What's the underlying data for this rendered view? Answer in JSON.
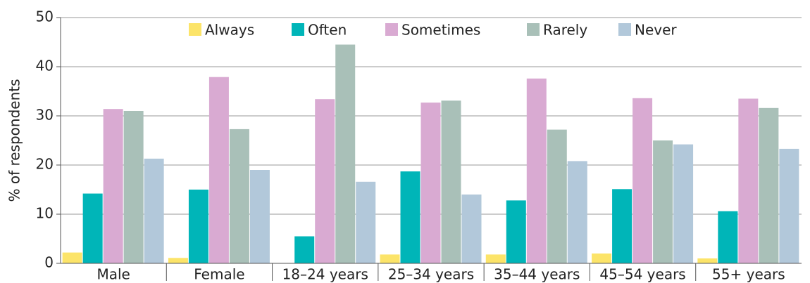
{
  "chart_data": {
    "type": "bar",
    "y_label": "% of respondents",
    "categories": [
      "Male",
      "Female",
      "18–24 years",
      "25–34 years",
      "35–44 years",
      "45–54 years",
      "55+ years"
    ],
    "series": [
      {
        "name": "Always",
        "color": "#fce469",
        "values": [
          2.2,
          1.1,
          0,
          1.8,
          1.8,
          2,
          1
        ]
      },
      {
        "name": "Often",
        "color": "#00b5b8",
        "values": [
          14.2,
          15,
          5.5,
          18.7,
          12.8,
          15.1,
          10.6
        ]
      },
      {
        "name": "Sometimes",
        "color": "#d9aad2",
        "values": [
          31.4,
          37.9,
          33.4,
          32.7,
          37.6,
          33.6,
          33.5
        ]
      },
      {
        "name": "Rarely",
        "color": "#a9c0b8",
        "values": [
          31,
          27.3,
          44.5,
          33.1,
          27.2,
          25,
          31.6
        ]
      },
      {
        "name": "Never",
        "color": "#b2c8da",
        "values": [
          21.3,
          19,
          16.6,
          14,
          20.8,
          24.2,
          23.3
        ]
      }
    ],
    "ylim": [
      0,
      50
    ],
    "yticks": [
      0,
      10,
      20,
      30,
      40,
      50
    ],
    "grid": true,
    "legend": "top"
  }
}
